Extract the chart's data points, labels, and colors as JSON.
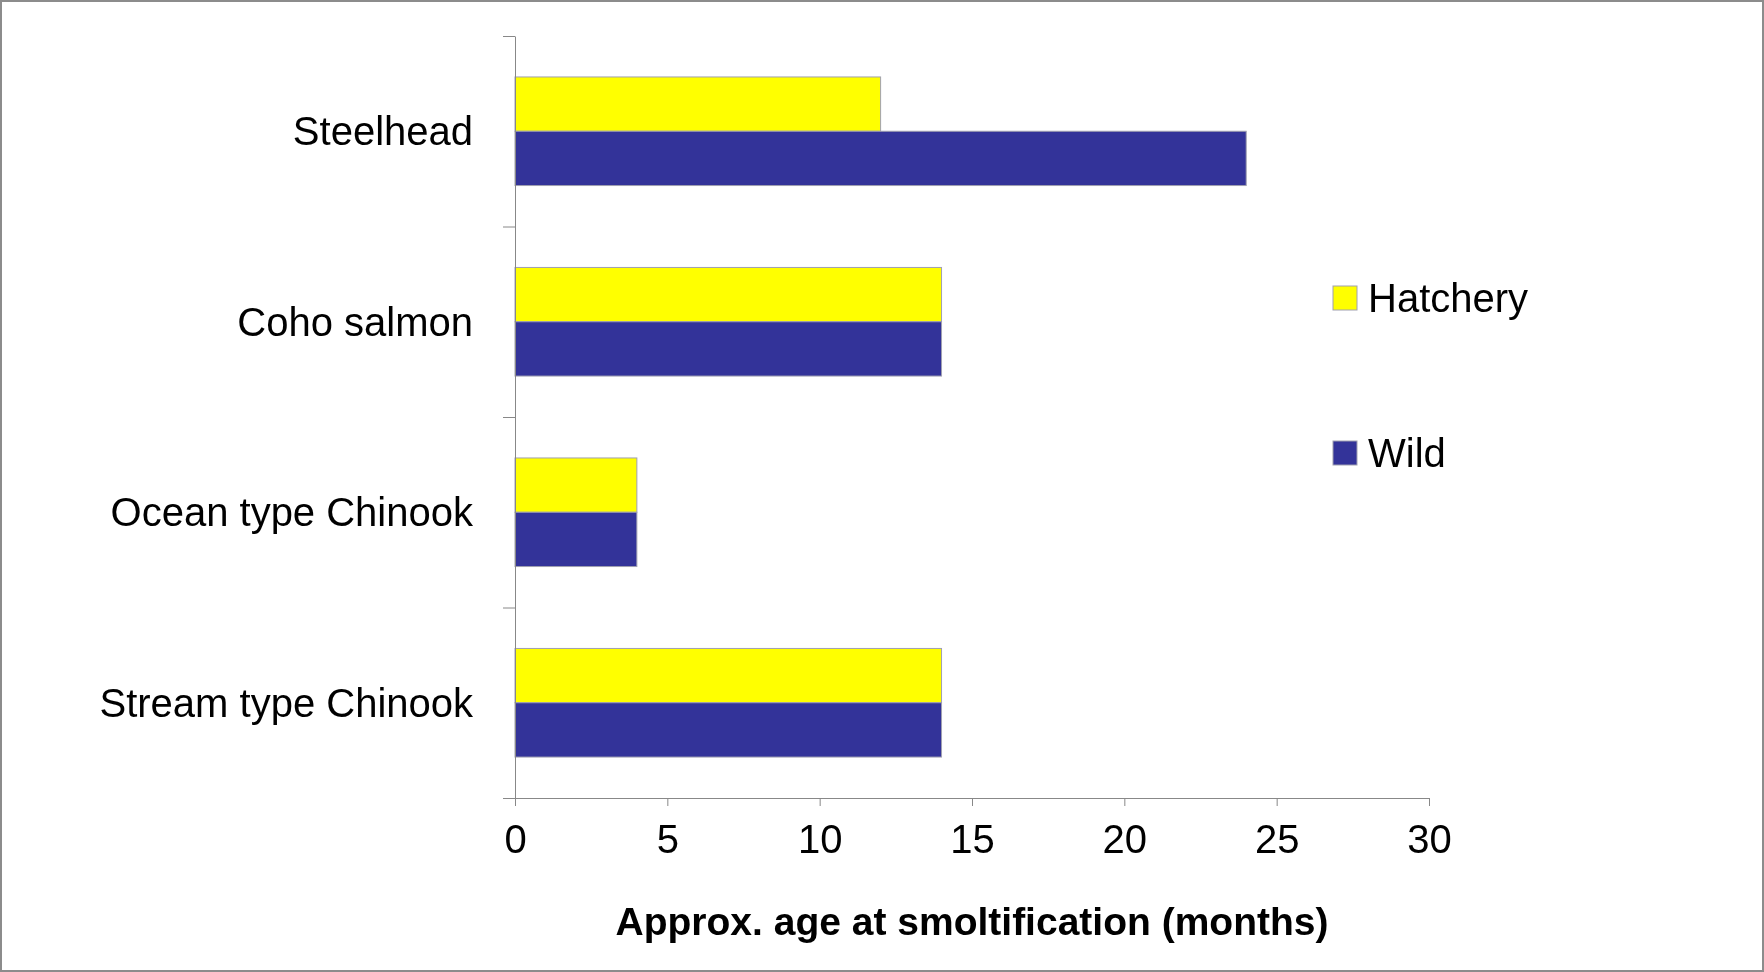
{
  "chart_data": {
    "type": "bar",
    "orientation": "horizontal",
    "xlabel": "Approx. age at smoltification (months)",
    "categories": [
      "Steelhead",
      "Coho salmon",
      "Ocean type Chinook",
      "Stream type Chinook"
    ],
    "series": [
      {
        "name": "Hatchery",
        "color": "#ffff00",
        "values": [
          12,
          14,
          4,
          14
        ]
      },
      {
        "name": "Wild",
        "color": "#333399",
        "values": [
          24,
          14,
          4,
          14
        ]
      }
    ],
    "xlim": [
      0,
      30
    ],
    "xticks": [
      0,
      5,
      10,
      15,
      20,
      25,
      30
    ],
    "grid": false,
    "legend": "right"
  }
}
